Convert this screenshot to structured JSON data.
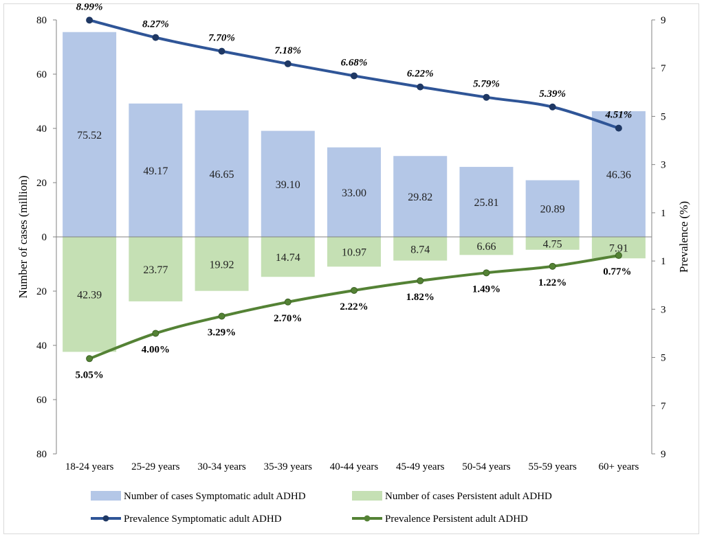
{
  "chart_data": {
    "type": "bar",
    "categories": [
      "18-24 years",
      "25-29 years",
      "30-34 years",
      "35-39 years",
      "40-44 years",
      "45-49 years",
      "50-54 years",
      "55-59 years",
      "60+ years"
    ],
    "series": [
      {
        "name": "Number of cases Symptomatic adult ADHD",
        "kind": "bar",
        "axis": "left",
        "direction": "up",
        "color": "#b4c7e7",
        "values": [
          75.52,
          49.17,
          46.65,
          39.1,
          33.0,
          29.82,
          25.81,
          20.89,
          46.36
        ],
        "labels": [
          "75.52",
          "49.17",
          "46.65",
          "39.10",
          "33.00",
          "29.82",
          "25.81",
          "20.89",
          "46.36"
        ]
      },
      {
        "name": "Number of cases Persistent adult ADHD",
        "kind": "bar",
        "axis": "left",
        "direction": "down",
        "color": "#c5e0b4",
        "values": [
          42.39,
          23.77,
          19.92,
          14.74,
          10.97,
          8.74,
          6.66,
          4.75,
          7.91
        ],
        "labels": [
          "42.39",
          "23.77",
          "19.92",
          "14.74",
          "10.97",
          "8.74",
          "6.66",
          "4.75",
          "7.91"
        ]
      },
      {
        "name": "Prevalence Symptomatic adult ADHD",
        "kind": "line",
        "axis": "right",
        "direction": "up",
        "color": "#2f5597",
        "values": [
          8.99,
          8.27,
          7.7,
          7.18,
          6.68,
          6.22,
          5.79,
          5.39,
          4.51
        ],
        "labels": [
          "8.99%",
          "8.27%",
          "7.70%",
          "7.18%",
          "6.68%",
          "6.22%",
          "5.79%",
          "5.39%",
          "4.51%"
        ]
      },
      {
        "name": "Prevalence Persistent adult ADHD",
        "kind": "line",
        "axis": "right",
        "direction": "down",
        "color": "#548235",
        "values": [
          5.05,
          4.0,
          3.29,
          2.7,
          2.22,
          1.82,
          1.49,
          1.22,
          0.77
        ],
        "labels": [
          "5.05%",
          "4.00%",
          "3.29%",
          "2.70%",
          "2.22%",
          "1.82%",
          "1.49%",
          "1.22%",
          "0.77%"
        ]
      }
    ],
    "ylabel": "Number of cases (million)",
    "y2label": "Prevalence (%)",
    "ylim": [
      -80,
      80
    ],
    "y2lim": [
      -9,
      9
    ],
    "yticks": [
      "80",
      "60",
      "40",
      "20",
      "0",
      "20",
      "40",
      "60",
      "80"
    ],
    "y2ticks": [
      "9",
      "7",
      "5",
      "3",
      "1",
      "1",
      "3",
      "5",
      "7",
      "9"
    ],
    "legend_position": "bottom",
    "grid": false
  }
}
